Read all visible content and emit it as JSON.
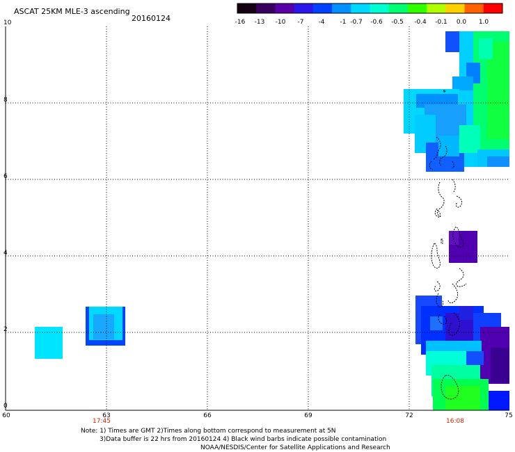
{
  "header": {
    "title": "ASCAT 25KM MLE-3 ascending",
    "date": "20160124"
  },
  "colorbar": {
    "labels": [
      "-16",
      "-13",
      "-10",
      "-7",
      "-4",
      "-1",
      "-0.7",
      "-0.6",
      "-0.5",
      "-0.4",
      "-0.1",
      "0.0",
      "1.0"
    ],
    "colors": [
      "#140010",
      "#3a0060",
      "#5a00a8",
      "#2a18e8",
      "#0040ff",
      "#0090ff",
      "#00d8ff",
      "#00ffd0",
      "#00ff70",
      "#30ff00",
      "#b0ff00",
      "#ffd000",
      "#ff6000",
      "#ff0000"
    ]
  },
  "axes": {
    "y_ticks": [
      "0",
      "2",
      "4",
      "6",
      "8",
      "10"
    ],
    "x_ticks": [
      "60",
      "63",
      "66",
      "69",
      "72",
      "75"
    ],
    "x_range": [
      60,
      75
    ],
    "y_range": [
      0,
      10
    ],
    "grid": true
  },
  "times": [
    {
      "label": "17:45",
      "lon": 63
    },
    {
      "label": "16:08",
      "lon": 73.5
    }
  ],
  "notes": {
    "line1": "Note: 1) Times are GMT 2)Times along bottom correspond to measurement at 5N",
    "line2": "3)Data buffer is 22 hrs from 20160124 4) Black wind barbs indicate possible contamination",
    "line3": "NOAA/NESDIS/Center for Satellite Applications and Research"
  }
}
